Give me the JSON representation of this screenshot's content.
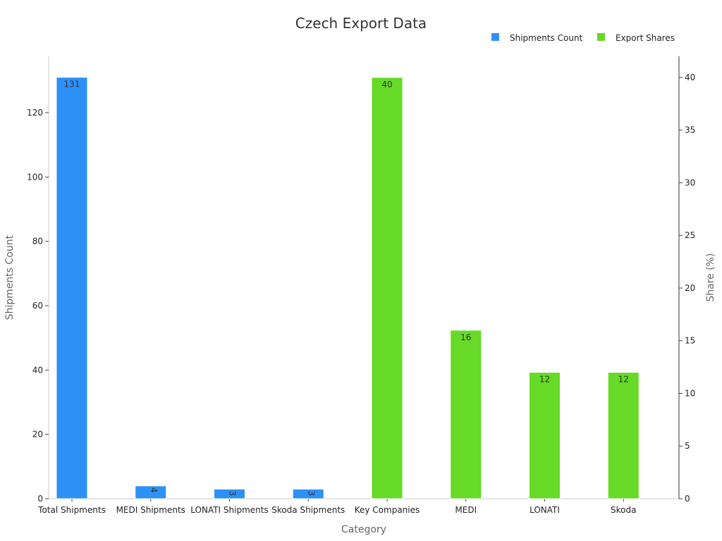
{
  "chart_data": {
    "type": "bar",
    "title": "Czech Export Data",
    "xlabel": "Category",
    "categories": [
      "Total Shipments",
      "MEDI Shipments",
      "LONATI Shipments",
      "Skoda Shipments",
      "Key Companies",
      "MEDI",
      "LONATI",
      "Skoda"
    ],
    "y_left": {
      "label": "Shipments Count",
      "lim": [
        0,
        137.5
      ],
      "ticks": [
        0,
        20,
        40,
        60,
        80,
        100,
        120
      ]
    },
    "y_right": {
      "label": "Share (%)",
      "lim": [
        0,
        42
      ],
      "ticks": [
        0,
        5,
        10,
        15,
        20,
        25,
        30,
        35,
        40
      ]
    },
    "series": [
      {
        "name": "Shipments Count",
        "axis": "left",
        "color": "#2E91F7",
        "values": [
          131,
          4,
          3,
          3,
          null,
          null,
          null,
          null
        ],
        "labels_rotated": [
          false,
          true,
          true,
          true,
          false,
          false,
          false,
          false
        ]
      },
      {
        "name": "Export Shares",
        "axis": "right",
        "color": "#66DA26",
        "values": [
          null,
          null,
          null,
          null,
          40,
          16,
          12,
          12
        ],
        "labels_rotated": [
          false,
          false,
          false,
          false,
          false,
          false,
          false,
          false
        ]
      }
    ],
    "legend_position": "top-right",
    "grid": false
  }
}
